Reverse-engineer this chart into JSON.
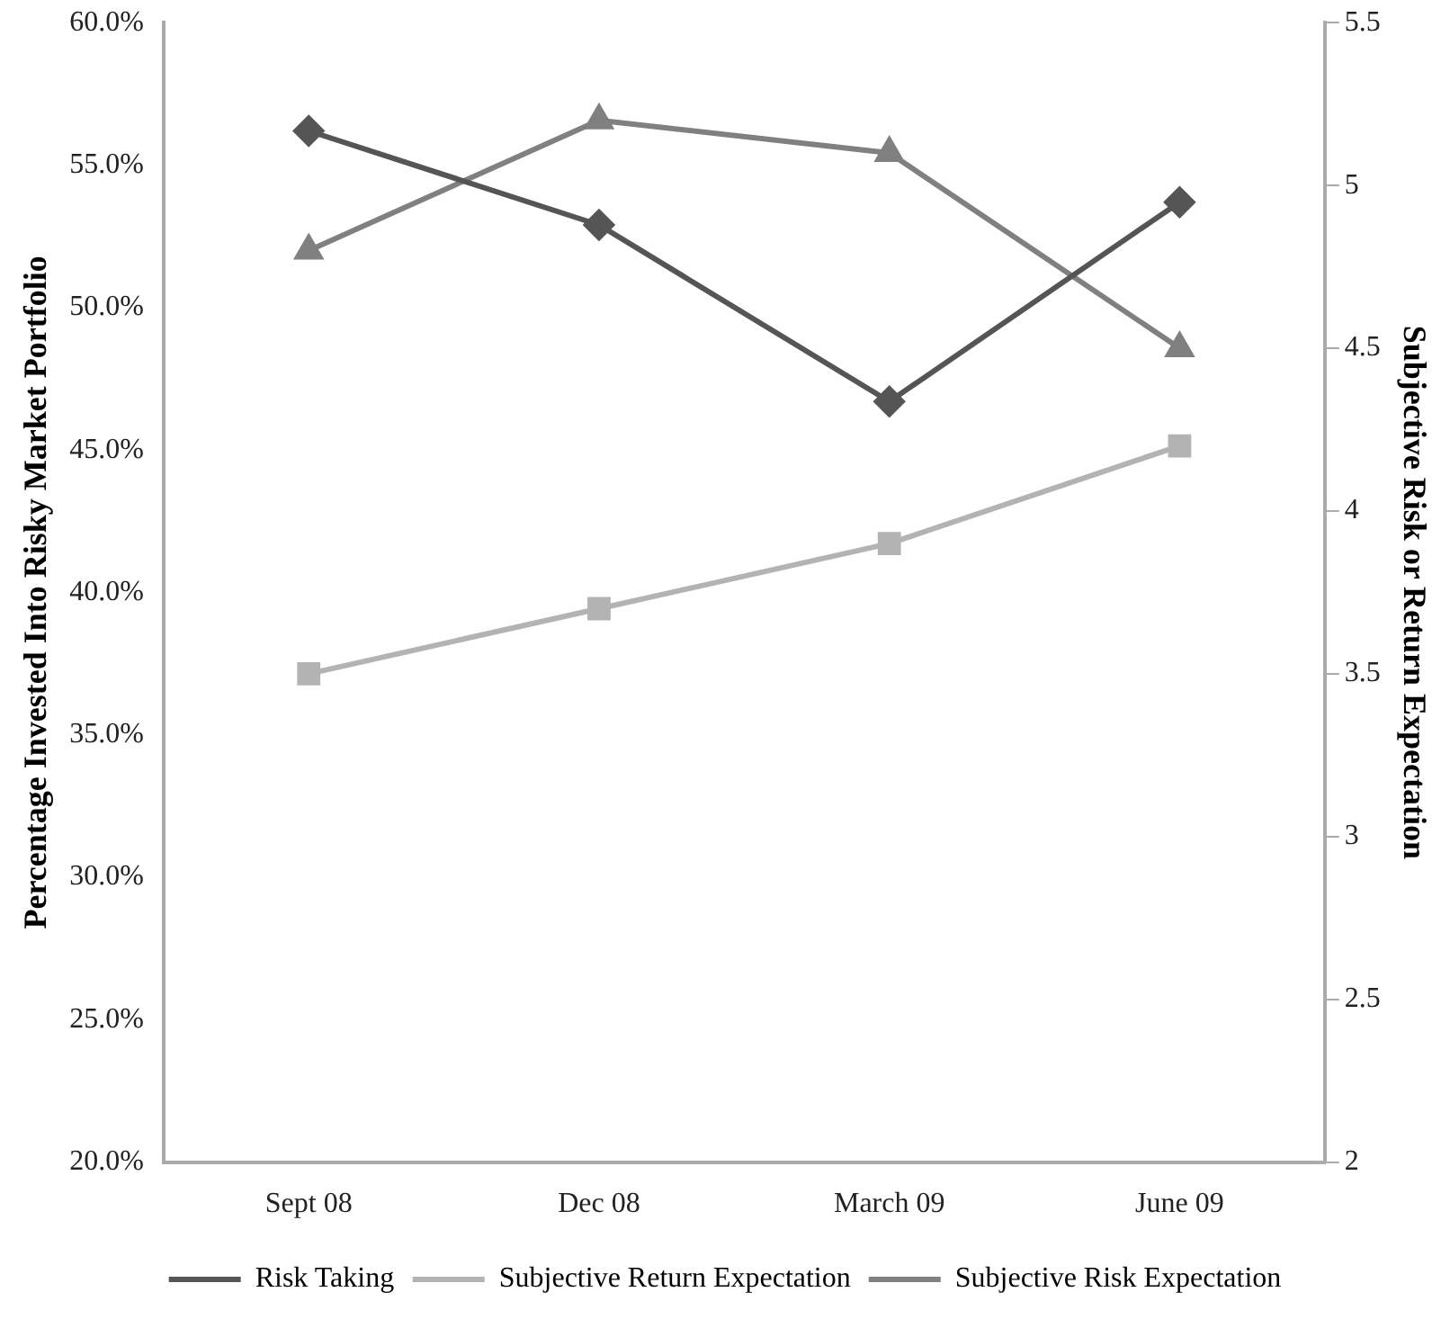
{
  "chart_data": {
    "type": "line",
    "ylabel": "Percentage Invested Into Risky Market Portfolio",
    "y2label": "Subjective Risk or Return Expectation",
    "categories": [
      "Sept 08",
      "Dec 08",
      "March 09",
      "June 09"
    ],
    "series": [
      {
        "name": "Risk Taking",
        "color": "#555555",
        "values": [
          56.2,
          52.9,
          46.7,
          53.7
        ],
        "marker": "diamond"
      },
      {
        "name": "Subjective Return Expectation",
        "color": "#b3b3b3",
        "values": [
          3.5,
          3.7,
          3.9,
          4.2
        ],
        "marker": "square",
        "axis": "y2"
      },
      {
        "name": "Subjective Risk Expectation",
        "color": "#808080",
        "values": [
          4.8,
          5.2,
          5.1,
          4.5
        ],
        "marker": "triangle",
        "axis": "y2"
      }
    ],
    "ylim": [
      20,
      60
    ],
    "yticks": [
      {
        "value": 20,
        "label": "20.0%"
      },
      {
        "value": 25,
        "label": "25.0%"
      },
      {
        "value": 30,
        "label": "30.0%"
      },
      {
        "value": 35,
        "label": "35.0%"
      },
      {
        "value": 40,
        "label": "40.0%"
      },
      {
        "value": 45,
        "label": "45.0%"
      },
      {
        "value": 50,
        "label": "50.0%"
      },
      {
        "value": 55,
        "label": "55.0%"
      },
      {
        "value": 60,
        "label": "60.0%"
      }
    ],
    "y2lim": [
      2,
      5.5
    ],
    "y2ticks": [
      2,
      2.5,
      3,
      3.5,
      4,
      4.5,
      5,
      5.5
    ],
    "grid": false,
    "legend": "bottom",
    "line_style": "solid"
  }
}
